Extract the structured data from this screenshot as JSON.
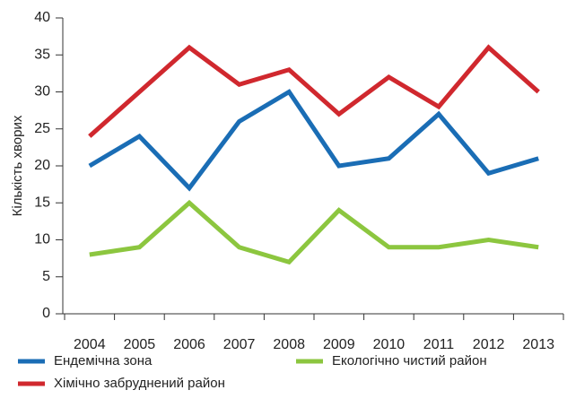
{
  "chart_data": {
    "type": "line",
    "y_label": "Кількість хворих",
    "categories": [
      "2004",
      "2005",
      "2006",
      "2007",
      "2008",
      "2009",
      "2010",
      "2011",
      "2012",
      "2013"
    ],
    "series": [
      {
        "name": "Ендемічна зона",
        "color": "#1a6db5",
        "values": [
          20,
          24,
          17,
          26,
          30,
          20,
          21,
          27,
          19,
          21
        ]
      },
      {
        "name": "Хімічно забруднений район",
        "color": "#d0282e",
        "values": [
          24,
          30,
          36,
          31,
          33,
          27,
          32,
          28,
          36,
          30
        ]
      },
      {
        "name": "Екологічно чистий район",
        "color": "#8cc63f",
        "values": [
          8,
          9,
          15,
          9,
          7,
          14,
          9,
          9,
          10,
          9
        ]
      }
    ],
    "ylim": [
      0,
      40
    ],
    "yticks": [
      0,
      5,
      10,
      15,
      20,
      25,
      30,
      35,
      40
    ],
    "grid": false
  }
}
